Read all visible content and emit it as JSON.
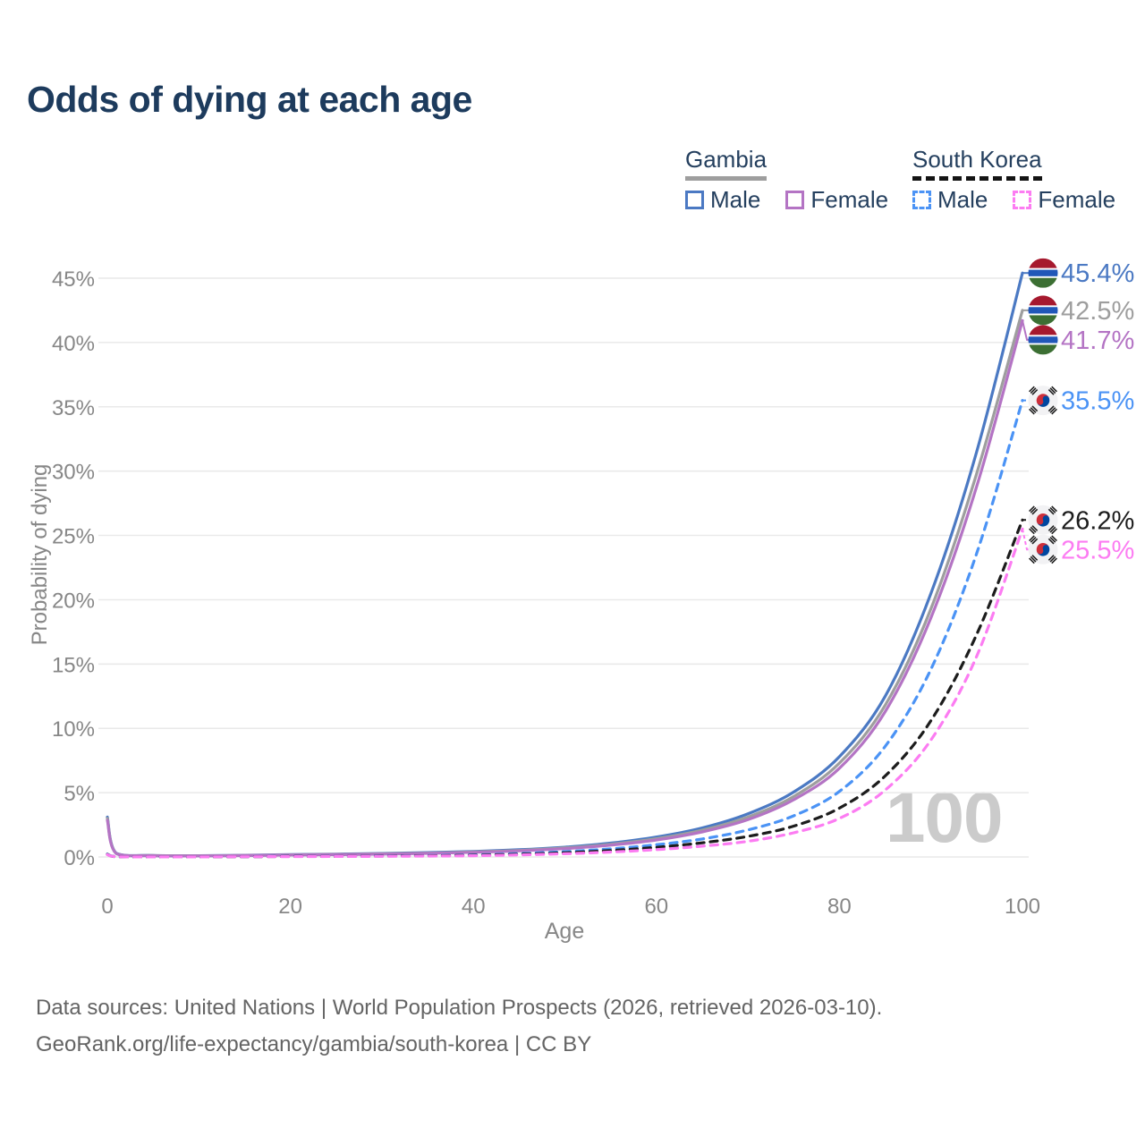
{
  "title": "Odds of dying at each age",
  "watermark": "100",
  "legend": {
    "gambia": {
      "title": "Gambia",
      "male": "Male",
      "female": "Female"
    },
    "south_korea": {
      "title": "South Korea",
      "male": "Male",
      "female": "Female"
    }
  },
  "footer": {
    "line1": "Data sources: United Nations | World Population Prospects (2026, retrieved 2026-03-10).",
    "line2": "GeoRank.org/life-expectancy/gambia/south-korea | CC BY"
  },
  "colors": {
    "gambia_male": "#4b79c3",
    "gambia_all": "#9e9e9e",
    "gambia_female": "#b474c4",
    "korea_male": "#4b93f5",
    "korea_all": "#1c1c1c",
    "korea_female": "#fc7cf2",
    "title_navy": "#1d3b5d",
    "grid": "#e9e9e9",
    "tick_text": "#878787"
  },
  "chart_data": {
    "type": "line",
    "title": "Odds of dying at each age",
    "xlabel": "Age",
    "ylabel": "Probability of dying",
    "xlim": [
      0,
      100
    ],
    "ylim": [
      0,
      45.4
    ],
    "x_ticks": [
      0,
      20,
      40,
      60,
      80,
      100
    ],
    "y_ticks": [
      0,
      5,
      10,
      15,
      20,
      25,
      30,
      35,
      40,
      45
    ],
    "y_tick_suffix": "%",
    "grid": "horizontal",
    "ages": [
      0,
      1,
      5,
      10,
      15,
      20,
      25,
      30,
      35,
      40,
      45,
      50,
      55,
      60,
      65,
      70,
      75,
      80,
      85,
      90,
      95,
      100
    ],
    "series": [
      {
        "name": "Gambia Male",
        "country": "Gambia",
        "sex": "male",
        "color": "#4b79c3",
        "dash": false,
        "flag": "gambia",
        "end_value": 45.4,
        "end_label": "45.4%",
        "values": [
          3.1,
          0.28,
          0.12,
          0.1,
          0.13,
          0.18,
          0.22,
          0.27,
          0.34,
          0.43,
          0.56,
          0.76,
          1.08,
          1.55,
          2.25,
          3.35,
          5.05,
          7.8,
          12.5,
          20.5,
          31.5,
          45.4
        ]
      },
      {
        "name": "Gambia Both sexes",
        "country": "Gambia",
        "sex": "all",
        "color": "#9e9e9e",
        "dash": false,
        "flag": "gambia",
        "end_value": 42.5,
        "end_label": "42.5%",
        "values": [
          3.0,
          0.26,
          0.11,
          0.09,
          0.12,
          0.16,
          0.2,
          0.24,
          0.3,
          0.39,
          0.51,
          0.7,
          0.99,
          1.42,
          2.08,
          3.1,
          4.7,
          7.3,
          11.8,
          19.3,
          29.8,
          42.5
        ]
      },
      {
        "name": "Gambia Female",
        "country": "Gambia",
        "sex": "female",
        "color": "#b474c4",
        "dash": false,
        "flag": "gambia",
        "end_value": 41.7,
        "end_label": "41.7%",
        "values": [
          2.85,
          0.25,
          0.1,
          0.08,
          0.11,
          0.15,
          0.18,
          0.22,
          0.28,
          0.36,
          0.47,
          0.65,
          0.92,
          1.32,
          1.95,
          2.9,
          4.45,
          6.9,
          11.3,
          18.6,
          28.8,
          41.7
        ]
      },
      {
        "name": "South Korea Male",
        "country": "South Korea",
        "sex": "male",
        "color": "#4b93f5",
        "dash": true,
        "flag": "south-korea",
        "end_value": 35.5,
        "end_label": "35.5%",
        "values": [
          0.22,
          0.02,
          0.01,
          0.01,
          0.03,
          0.05,
          0.06,
          0.08,
          0.11,
          0.16,
          0.26,
          0.42,
          0.63,
          0.95,
          1.4,
          2.1,
          3.2,
          5.1,
          8.6,
          14.6,
          23.6,
          35.5
        ]
      },
      {
        "name": "South Korea Both sexes",
        "country": "South Korea",
        "sex": "all",
        "color": "#1c1c1c",
        "dash": true,
        "flag": "south-korea",
        "end_value": 26.2,
        "end_label": "26.2%",
        "values": [
          0.2,
          0.02,
          0.01,
          0.01,
          0.02,
          0.04,
          0.05,
          0.07,
          0.09,
          0.13,
          0.21,
          0.33,
          0.5,
          0.75,
          1.1,
          1.6,
          2.4,
          3.8,
          6.3,
          10.6,
          17.3,
          26.2
        ]
      },
      {
        "name": "South Korea Female",
        "country": "South Korea",
        "sex": "female",
        "color": "#fc7cf2",
        "dash": true,
        "flag": "south-korea",
        "end_value": 25.5,
        "end_label": "25.5%",
        "values": [
          0.18,
          0.02,
          0.01,
          0.01,
          0.02,
          0.03,
          0.04,
          0.05,
          0.07,
          0.1,
          0.16,
          0.25,
          0.38,
          0.57,
          0.84,
          1.22,
          1.88,
          3.0,
          5.2,
          9.1,
          15.6,
          25.5
        ]
      }
    ]
  }
}
